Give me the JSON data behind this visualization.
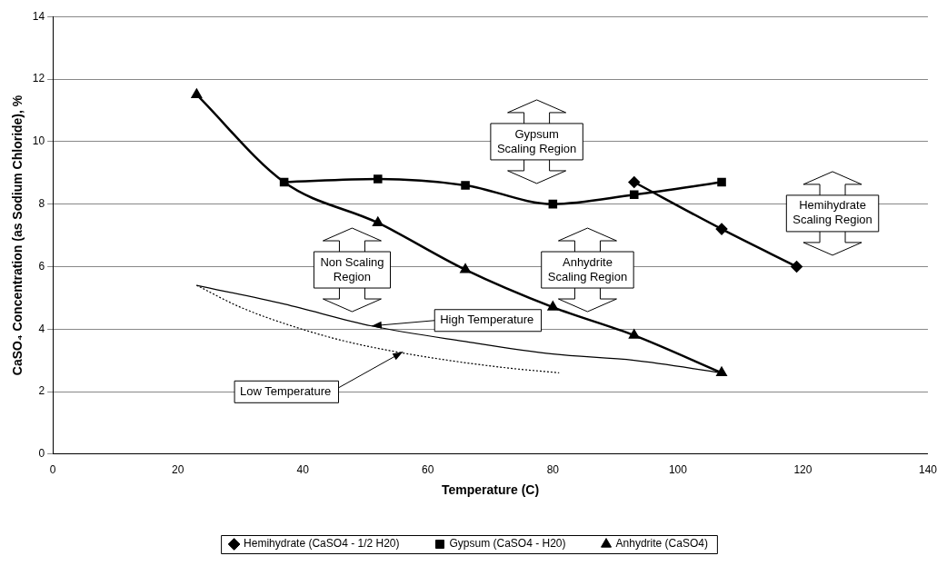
{
  "chart_data": {
    "type": "line",
    "xlabel": "Temperature (C)",
    "ylabel": "CaSO₄ Concentration (as Sodium Chloride), %",
    "xlim": [
      0,
      140
    ],
    "xticks": [
      0,
      20,
      40,
      60,
      80,
      100,
      120,
      140
    ],
    "ylim": [
      0,
      14
    ],
    "yticks": [
      0,
      2,
      4,
      6,
      8,
      10,
      12,
      14
    ],
    "grid": "y",
    "legend": "bottom",
    "series": [
      {
        "name": "Hemihydrate (CaSO4 - 1/2 H20)",
        "color": "#000000",
        "marker": "diamond",
        "x": [
          93,
          107,
          119
        ],
        "values": [
          8.7,
          7.2,
          6.0
        ]
      },
      {
        "name": "Gypsum (CaSO4 - H20)",
        "color": "#000000",
        "marker": "square",
        "x": [
          37,
          52,
          66,
          80,
          93,
          107
        ],
        "values": [
          8.7,
          8.8,
          8.6,
          8.0,
          8.3,
          8.7
        ]
      },
      {
        "name": "Anhydrite (CaSO4)",
        "color": "#000000",
        "marker": "triangle",
        "x": [
          23,
          37,
          52,
          66,
          80,
          93,
          107
        ],
        "values": [
          11.5,
          8.7,
          7.4,
          5.9,
          4.7,
          3.8,
          2.6
        ]
      },
      {
        "color": "#000000",
        "marker": "none",
        "line_style": "solid",
        "x": [
          23,
          37,
          51,
          66,
          80,
          93,
          107
        ],
        "values": [
          5.4,
          4.8,
          4.1,
          3.6,
          3.2,
          3.0,
          2.6
        ]
      },
      {
        "color": "#000000",
        "marker": "none",
        "line_style": "dotted",
        "x": [
          23,
          30,
          39,
          47,
          55,
          65,
          73,
          81
        ],
        "values": [
          5.4,
          4.7,
          4.05,
          3.6,
          3.27,
          2.95,
          2.75,
          2.6
        ]
      }
    ],
    "annotations": [
      "Gypsum\nScaling Region",
      "Non Scaling\nRegion",
      "Anhydrite\nScaling Region",
      "Hemihydrate\nScaling Region",
      {
        "text": "High Temperature",
        "x": 51,
        "y": 4.1
      },
      {
        "text": "Low Temperature",
        "x": 56,
        "y": 3.27
      }
    ]
  }
}
